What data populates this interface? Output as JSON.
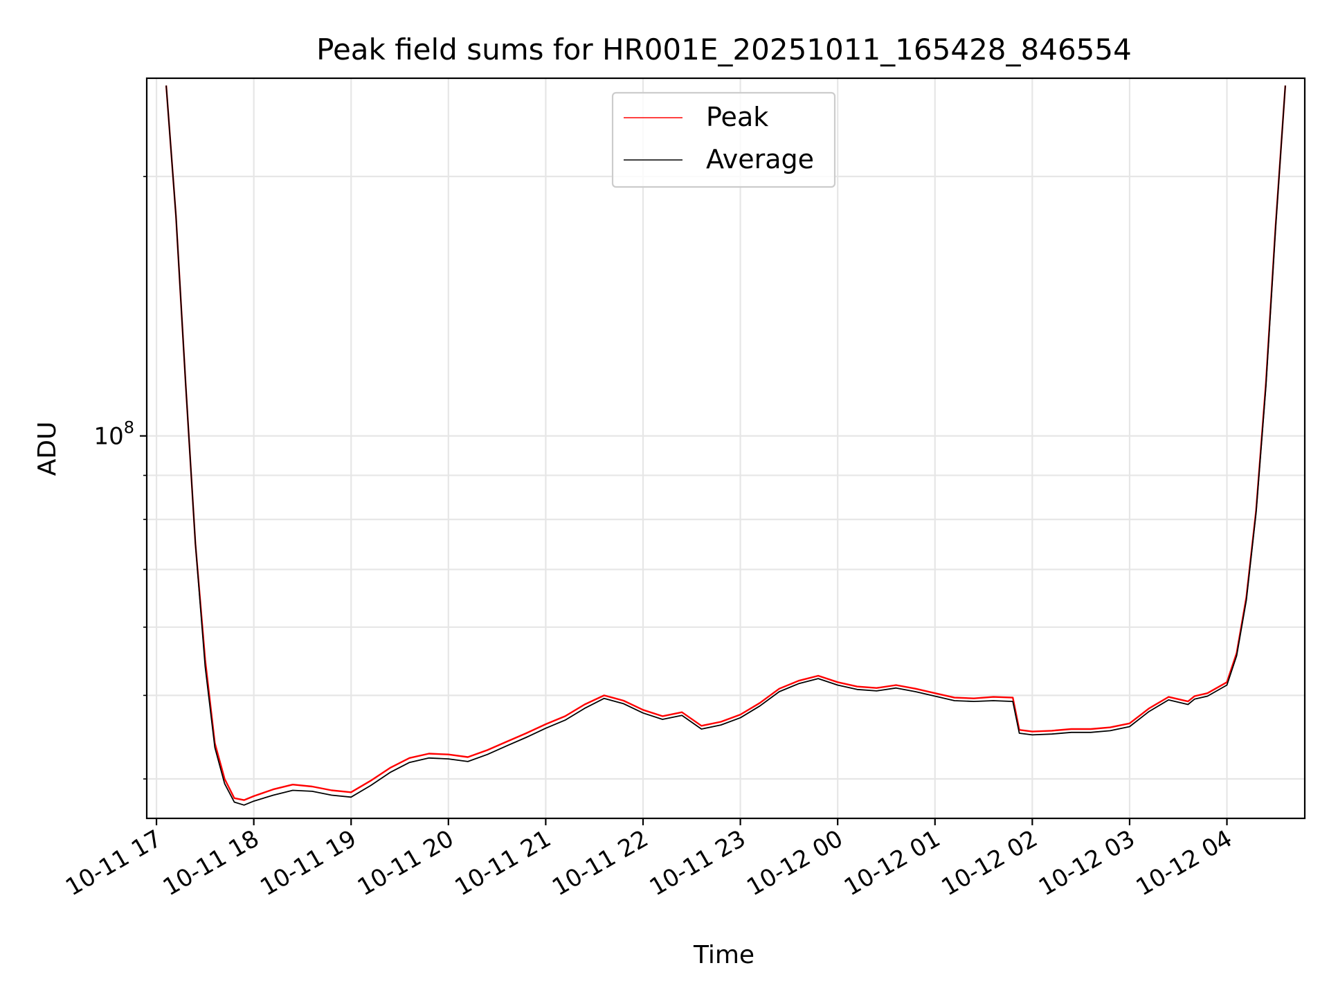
{
  "chart_data": {
    "type": "line",
    "title": "Peak field sums for HR001E_20251011_165428_846554",
    "xlabel": "Time",
    "ylabel": "ADU",
    "y_scale": "log",
    "ylim": [
      36000000,
      260000000
    ],
    "x_tick_labels": [
      "10-11 17",
      "10-11 18",
      "10-11 19",
      "10-11 20",
      "10-11 21",
      "10-11 22",
      "10-11 23",
      "10-12 00",
      "10-12 01",
      "10-12 02",
      "10-12 03",
      "10-12 04"
    ],
    "x_ticks": [
      "2025-10-11 17:00",
      "2025-10-11 18:00",
      "2025-10-11 19:00",
      "2025-10-11 20:00",
      "2025-10-11 21:00",
      "2025-10-11 22:00",
      "2025-10-11 23:00",
      "2025-10-12 00:00",
      "2025-10-12 01:00",
      "2025-10-12 02:00",
      "2025-10-12 03:00",
      "2025-10-12 04:00"
    ],
    "xlim": [
      "2025-10-11 16:54",
      "2025-10-12 04:48"
    ],
    "y_tick_label": "10^8",
    "y_tick_label_base": "10",
    "y_tick_label_exp": "8",
    "grid": true,
    "legend_position": "top-center",
    "series": [
      {
        "name": "Peak",
        "color": "#ff0000",
        "points": [
          [
            "2025-10-11 17:06",
            255000000
          ],
          [
            "2025-10-11 17:12",
            180000000
          ],
          [
            "2025-10-11 17:18",
            115000000
          ],
          [
            "2025-10-11 17:24",
            75000000
          ],
          [
            "2025-10-11 17:30",
            55000000
          ],
          [
            "2025-10-11 17:36",
            44000000
          ],
          [
            "2025-10-11 17:42",
            40000000
          ],
          [
            "2025-10-11 17:48",
            38000000
          ],
          [
            "2025-10-11 17:54",
            37800000
          ],
          [
            "2025-10-11 18:00",
            38200000
          ],
          [
            "2025-10-11 18:12",
            38900000
          ],
          [
            "2025-10-11 18:24",
            39400000
          ],
          [
            "2025-10-11 18:36",
            39200000
          ],
          [
            "2025-10-11 18:48",
            38800000
          ],
          [
            "2025-10-11 19:00",
            38600000
          ],
          [
            "2025-10-11 19:12",
            39800000
          ],
          [
            "2025-10-11 19:24",
            41200000
          ],
          [
            "2025-10-11 19:36",
            42300000
          ],
          [
            "2025-10-11 19:48",
            42800000
          ],
          [
            "2025-10-11 20:00",
            42700000
          ],
          [
            "2025-10-11 20:12",
            42400000
          ],
          [
            "2025-10-11 20:24",
            43200000
          ],
          [
            "2025-10-11 20:36",
            44200000
          ],
          [
            "2025-10-11 20:48",
            45200000
          ],
          [
            "2025-10-11 21:00",
            46300000
          ],
          [
            "2025-10-11 21:12",
            47300000
          ],
          [
            "2025-10-11 21:24",
            48800000
          ],
          [
            "2025-10-11 21:36",
            50000000
          ],
          [
            "2025-10-11 21:48",
            49300000
          ],
          [
            "2025-10-11 22:00",
            48100000
          ],
          [
            "2025-10-11 22:12",
            47300000
          ],
          [
            "2025-10-11 22:24",
            47800000
          ],
          [
            "2025-10-11 22:36",
            46100000
          ],
          [
            "2025-10-11 22:48",
            46600000
          ],
          [
            "2025-10-11 23:00",
            47500000
          ],
          [
            "2025-10-11 23:12",
            49000000
          ],
          [
            "2025-10-11 23:24",
            50900000
          ],
          [
            "2025-10-11 23:36",
            52000000
          ],
          [
            "2025-10-11 23:48",
            52700000
          ],
          [
            "2025-10-12 00:00",
            51800000
          ],
          [
            "2025-10-12 00:12",
            51200000
          ],
          [
            "2025-10-12 00:24",
            51000000
          ],
          [
            "2025-10-12 00:36",
            51400000
          ],
          [
            "2025-10-12 00:48",
            50900000
          ],
          [
            "2025-10-12 01:00",
            50300000
          ],
          [
            "2025-10-12 01:12",
            49700000
          ],
          [
            "2025-10-12 01:24",
            49600000
          ],
          [
            "2025-10-12 01:36",
            49800000
          ],
          [
            "2025-10-12 01:48",
            49700000
          ],
          [
            "2025-10-12 01:52",
            45600000
          ],
          [
            "2025-10-12 02:00",
            45400000
          ],
          [
            "2025-10-12 02:12",
            45500000
          ],
          [
            "2025-10-12 02:24",
            45700000
          ],
          [
            "2025-10-12 02:36",
            45700000
          ],
          [
            "2025-10-12 02:48",
            45900000
          ],
          [
            "2025-10-12 03:00",
            46400000
          ],
          [
            "2025-10-12 03:12",
            48300000
          ],
          [
            "2025-10-12 03:24",
            49800000
          ],
          [
            "2025-10-12 03:36",
            49200000
          ],
          [
            "2025-10-12 03:40",
            49900000
          ],
          [
            "2025-10-12 03:48",
            50300000
          ],
          [
            "2025-10-12 04:00",
            51800000
          ],
          [
            "2025-10-12 04:06",
            56000000
          ],
          [
            "2025-10-12 04:12",
            65000000
          ],
          [
            "2025-10-12 04:18",
            82000000
          ],
          [
            "2025-10-12 04:24",
            115000000
          ],
          [
            "2025-10-12 04:30",
            175000000
          ],
          [
            "2025-10-12 04:36",
            255000000
          ]
        ]
      },
      {
        "name": "Average",
        "color": "#000000",
        "points": [
          [
            "2025-10-11 17:06",
            255000000
          ],
          [
            "2025-10-11 17:12",
            180000000
          ],
          [
            "2025-10-11 17:18",
            115000000
          ],
          [
            "2025-10-11 17:24",
            75000000
          ],
          [
            "2025-10-11 17:30",
            54000000
          ],
          [
            "2025-10-11 17:36",
            43500000
          ],
          [
            "2025-10-11 17:42",
            39500000
          ],
          [
            "2025-10-11 17:48",
            37600000
          ],
          [
            "2025-10-11 17:54",
            37300000
          ],
          [
            "2025-10-11 18:00",
            37700000
          ],
          [
            "2025-10-11 18:12",
            38300000
          ],
          [
            "2025-10-11 18:24",
            38800000
          ],
          [
            "2025-10-11 18:36",
            38700000
          ],
          [
            "2025-10-11 18:48",
            38300000
          ],
          [
            "2025-10-11 19:00",
            38100000
          ],
          [
            "2025-10-11 19:12",
            39300000
          ],
          [
            "2025-10-11 19:24",
            40700000
          ],
          [
            "2025-10-11 19:36",
            41800000
          ],
          [
            "2025-10-11 19:48",
            42300000
          ],
          [
            "2025-10-11 20:00",
            42200000
          ],
          [
            "2025-10-11 20:12",
            41900000
          ],
          [
            "2025-10-11 20:24",
            42700000
          ],
          [
            "2025-10-11 20:36",
            43700000
          ],
          [
            "2025-10-11 20:48",
            44700000
          ],
          [
            "2025-10-11 21:00",
            45800000
          ],
          [
            "2025-10-11 21:12",
            46800000
          ],
          [
            "2025-10-11 21:24",
            48300000
          ],
          [
            "2025-10-11 21:36",
            49600000
          ],
          [
            "2025-10-11 21:48",
            48900000
          ],
          [
            "2025-10-11 22:00",
            47700000
          ],
          [
            "2025-10-11 22:12",
            46900000
          ],
          [
            "2025-10-11 22:24",
            47400000
          ],
          [
            "2025-10-11 22:36",
            45700000
          ],
          [
            "2025-10-11 22:48",
            46200000
          ],
          [
            "2025-10-11 23:00",
            47100000
          ],
          [
            "2025-10-11 23:12",
            48600000
          ],
          [
            "2025-10-11 23:24",
            50500000
          ],
          [
            "2025-10-11 23:36",
            51600000
          ],
          [
            "2025-10-11 23:48",
            52300000
          ],
          [
            "2025-10-12 00:00",
            51400000
          ],
          [
            "2025-10-12 00:12",
            50800000
          ],
          [
            "2025-10-12 00:24",
            50600000
          ],
          [
            "2025-10-12 00:36",
            51000000
          ],
          [
            "2025-10-12 00:48",
            50500000
          ],
          [
            "2025-10-12 01:00",
            49900000
          ],
          [
            "2025-10-12 01:12",
            49300000
          ],
          [
            "2025-10-12 01:24",
            49200000
          ],
          [
            "2025-10-12 01:36",
            49300000
          ],
          [
            "2025-10-12 01:48",
            49200000
          ],
          [
            "2025-10-12 01:52",
            45200000
          ],
          [
            "2025-10-12 02:00",
            45000000
          ],
          [
            "2025-10-12 02:12",
            45100000
          ],
          [
            "2025-10-12 02:24",
            45300000
          ],
          [
            "2025-10-12 02:36",
            45300000
          ],
          [
            "2025-10-12 02:48",
            45500000
          ],
          [
            "2025-10-12 03:00",
            46000000
          ],
          [
            "2025-10-12 03:12",
            47900000
          ],
          [
            "2025-10-12 03:24",
            49400000
          ],
          [
            "2025-10-12 03:36",
            48800000
          ],
          [
            "2025-10-12 03:40",
            49500000
          ],
          [
            "2025-10-12 03:48",
            49900000
          ],
          [
            "2025-10-12 04:00",
            51400000
          ],
          [
            "2025-10-12 04:06",
            55600000
          ],
          [
            "2025-10-12 04:12",
            64500000
          ],
          [
            "2025-10-12 04:18",
            81500000
          ],
          [
            "2025-10-12 04:24",
            114000000
          ],
          [
            "2025-10-12 04:30",
            174000000
          ],
          [
            "2025-10-12 04:36",
            255000000
          ]
        ]
      }
    ]
  }
}
